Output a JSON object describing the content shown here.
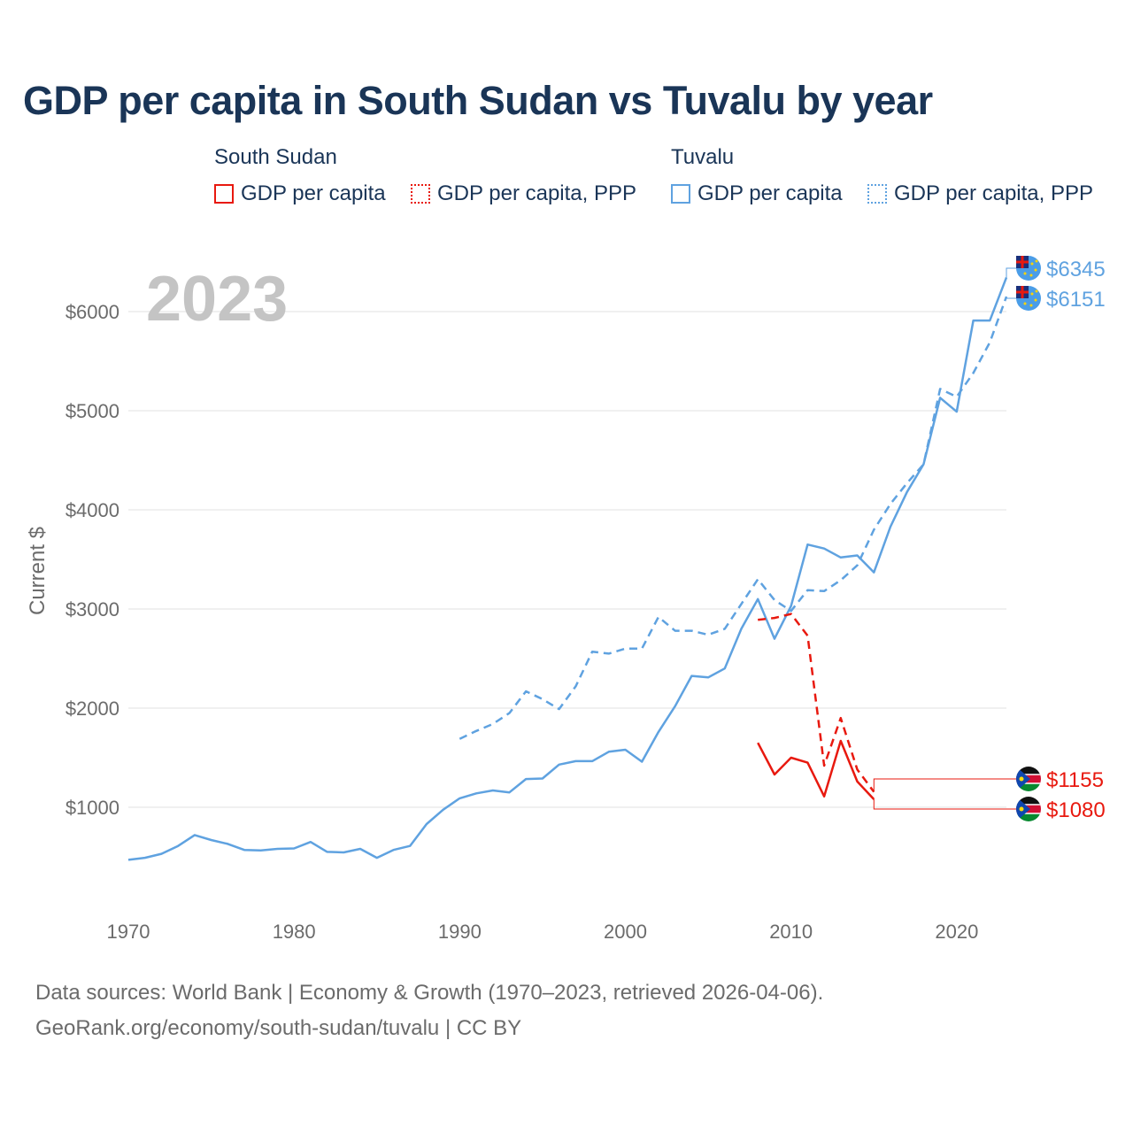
{
  "title": "GDP per capita in South Sudan vs Tuvalu by year",
  "legend": {
    "groups": [
      {
        "country": "South Sudan",
        "items": [
          "GDP per capita",
          "GDP per capita, PPP"
        ]
      },
      {
        "country": "Tuvalu",
        "items": [
          "GDP per capita",
          "GDP per capita, PPP"
        ]
      }
    ]
  },
  "footer": {
    "line1": "Data sources: World Bank | Economy & Growth (1970–2023, retrieved 2026-04-06).",
    "line2": "GeoRank.org/economy/south-sudan/tuvalu | CC BY"
  },
  "colors": {
    "south_sudan": "#e8190f",
    "tuvalu": "#5fa2e0",
    "grid": "#e6e6e6",
    "text": "#1a3557"
  },
  "chart_data": {
    "type": "line",
    "title": "GDP per capita in South Sudan vs Tuvalu by year",
    "ylabel": "Current $",
    "xlabel": "",
    "year_label": "2023",
    "xlim": [
      1970,
      2023
    ],
    "ylim": [
      0,
      6500
    ],
    "x_ticks": [
      1970,
      1980,
      1990,
      2000,
      2010,
      2020
    ],
    "y_ticks": [
      1000,
      2000,
      3000,
      4000,
      5000,
      6000
    ],
    "y_tick_labels": [
      "$1000",
      "$2000",
      "$3000",
      "$4000",
      "$5000",
      "$6000"
    ],
    "series": [
      {
        "name": "Tuvalu GDP per capita",
        "country": "Tuvalu",
        "style": "solid",
        "color": "#5fa2e0",
        "x": [
          1970,
          1971,
          1972,
          1973,
          1974,
          1975,
          1976,
          1977,
          1978,
          1979,
          1980,
          1981,
          1982,
          1983,
          1984,
          1985,
          1986,
          1987,
          1988,
          1989,
          1990,
          1991,
          1992,
          1993,
          1994,
          1995,
          1996,
          1997,
          1998,
          1999,
          2000,
          2001,
          2002,
          2003,
          2004,
          2005,
          2006,
          2007,
          2008,
          2009,
          2010,
          2011,
          2012,
          2013,
          2014,
          2015,
          2016,
          2017,
          2018,
          2019,
          2020,
          2021,
          2022,
          2023
        ],
        "values": [
          470,
          490,
          530,
          610,
          720,
          670,
          630,
          570,
          565,
          580,
          585,
          650,
          550,
          545,
          580,
          490,
          570,
          610,
          830,
          975,
          1090,
          1140,
          1170,
          1150,
          1285,
          1290,
          1430,
          1465,
          1465,
          1560,
          1580,
          1460,
          1760,
          2020,
          2325,
          2310,
          2400,
          2800,
          3100,
          2700,
          3030,
          3650,
          3610,
          3520,
          3540,
          3370,
          3830,
          4180,
          4460,
          5130,
          4990,
          5910,
          5910,
          6345
        ],
        "end_label": "$6345"
      },
      {
        "name": "Tuvalu GDP per capita, PPP",
        "country": "Tuvalu",
        "style": "dashed",
        "color": "#5fa2e0",
        "x": [
          1990,
          1991,
          1992,
          1993,
          1994,
          1995,
          1996,
          1997,
          1998,
          1999,
          2000,
          2001,
          2002,
          2003,
          2004,
          2005,
          2006,
          2007,
          2008,
          2009,
          2010,
          2011,
          2012,
          2013,
          2014,
          2015,
          2016,
          2017,
          2018,
          2019,
          2020,
          2021,
          2022,
          2023
        ],
        "values": [
          1690,
          1770,
          1840,
          1950,
          2170,
          2090,
          1990,
          2220,
          2570,
          2550,
          2600,
          2600,
          2920,
          2780,
          2780,
          2740,
          2800,
          3050,
          3300,
          3090,
          2980,
          3190,
          3180,
          3290,
          3440,
          3800,
          4060,
          4270,
          4460,
          5220,
          5140,
          5380,
          5690,
          6151
        ],
        "end_label": "$6151"
      },
      {
        "name": "South Sudan GDP per capita",
        "country": "South Sudan",
        "style": "solid",
        "color": "#e8190f",
        "x": [
          2008,
          2009,
          2010,
          2011,
          2012,
          2013,
          2014,
          2015
        ],
        "values": [
          1650,
          1330,
          1500,
          1450,
          1110,
          1670,
          1260,
          1080
        ],
        "end_label": "$1080"
      },
      {
        "name": "South Sudan GDP per capita, PPP",
        "country": "South Sudan",
        "style": "dashed",
        "color": "#e8190f",
        "x": [
          2008,
          2009,
          2010,
          2011,
          2012,
          2013,
          2014,
          2015
        ],
        "values": [
          2890,
          2910,
          2950,
          2730,
          1420,
          1900,
          1380,
          1155
        ],
        "end_label": "$1155"
      }
    ]
  }
}
